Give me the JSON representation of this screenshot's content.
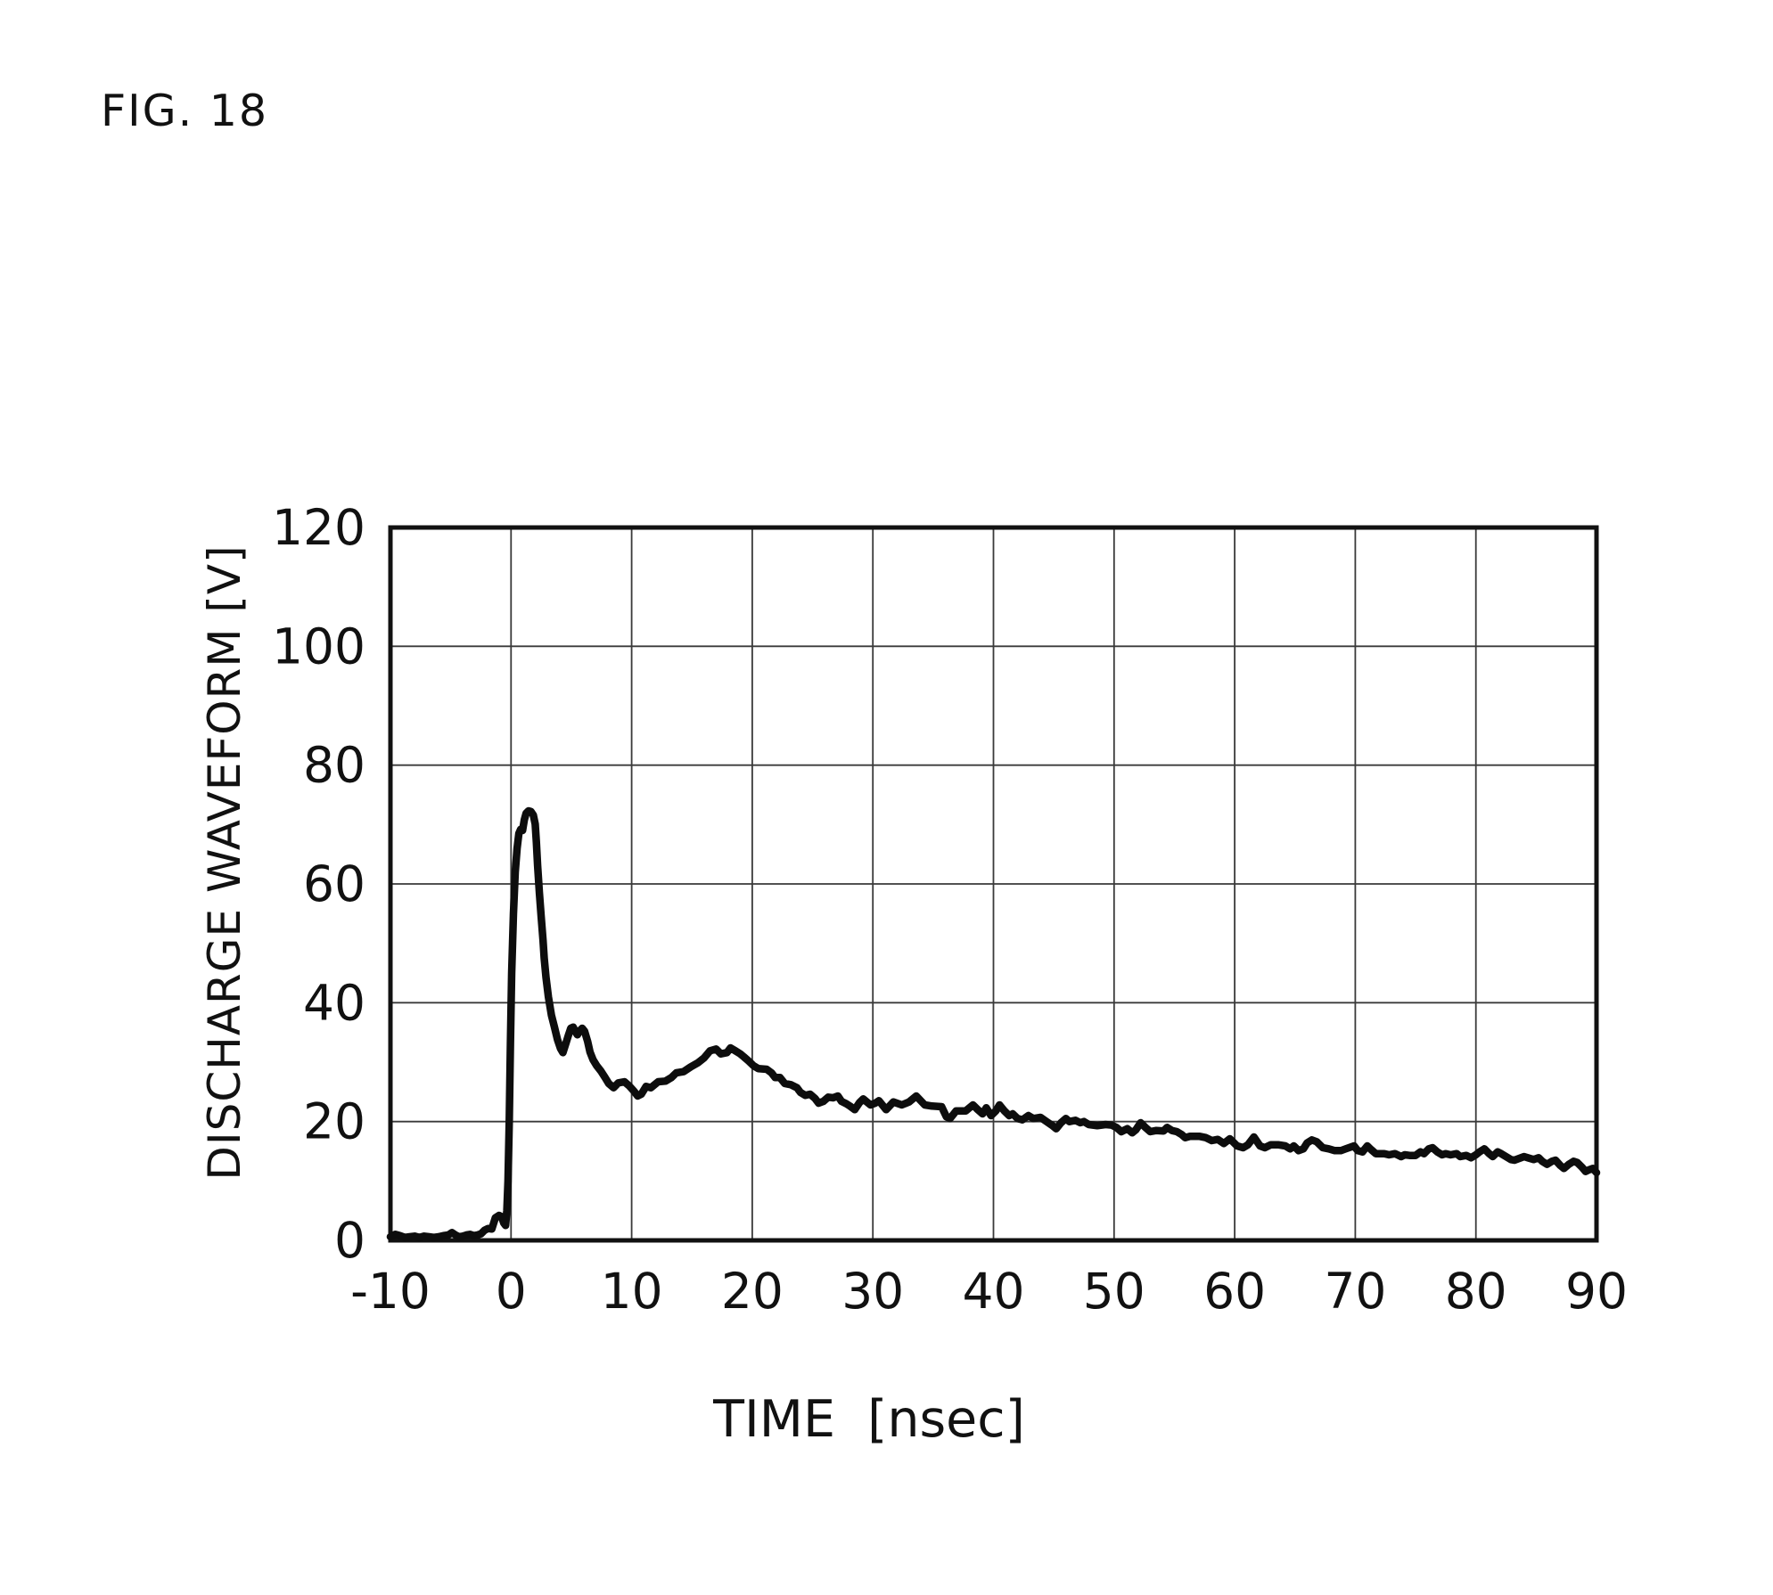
{
  "title": "FIG. 18",
  "colors": {
    "background": "#ffffff",
    "axis": "#111111",
    "grid": "#3a3a3a",
    "line": "#0d0d0d"
  },
  "chart_data": {
    "type": "line",
    "title": "FIG. 18",
    "xlabel": "TIME [nsec]",
    "ylabel": "DISCHARGE WAVEFORM [V]",
    "xlim": [
      -10,
      90
    ],
    "ylim": [
      0,
      120
    ],
    "xticks": [
      -10,
      0,
      10,
      20,
      30,
      40,
      50,
      60,
      70,
      80,
      90
    ],
    "yticks": [
      0,
      20,
      40,
      60,
      80,
      100,
      120
    ],
    "grid": true,
    "legend_position": "none",
    "series": [
      {
        "name": "discharge-waveform",
        "points": [
          [
            -10,
            0.6
          ],
          [
            -9.6,
            1.0
          ],
          [
            -9.2,
            0.8
          ],
          [
            -8.8,
            0.5
          ],
          [
            -8.4,
            0.6
          ],
          [
            -8.0,
            0.7
          ],
          [
            -7.6,
            0.5
          ],
          [
            -7.2,
            0.7
          ],
          [
            -6.8,
            0.6
          ],
          [
            -6.4,
            0.5
          ],
          [
            -6.0,
            0.6
          ],
          [
            -5.6,
            0.8
          ],
          [
            -5.2,
            0.9
          ],
          [
            -4.9,
            1.3
          ],
          [
            -4.6,
            0.9
          ],
          [
            -4.3,
            0.6
          ],
          [
            -4.0,
            0.7
          ],
          [
            -3.7,
            0.9
          ],
          [
            -3.4,
            1.0
          ],
          [
            -3.1,
            0.8
          ],
          [
            -2.8,
            0.9
          ],
          [
            -2.5,
            1.1
          ],
          [
            -2.2,
            1.7
          ],
          [
            -1.9,
            2.0
          ],
          [
            -1.6,
            1.9
          ],
          [
            -1.3,
            3.8
          ],
          [
            -1.0,
            4.2
          ],
          [
            -0.8,
            4.0
          ],
          [
            -0.6,
            2.9
          ],
          [
            -0.45,
            2.5
          ],
          [
            -0.35,
            5.0
          ],
          [
            -0.25,
            10.0
          ],
          [
            -0.15,
            20.0
          ],
          [
            -0.05,
            33.0
          ],
          [
            0.05,
            45.0
          ],
          [
            0.2,
            55.0
          ],
          [
            0.35,
            62.0
          ],
          [
            0.5,
            66.0
          ],
          [
            0.65,
            68.5
          ],
          [
            0.8,
            69.2
          ],
          [
            0.95,
            69.0
          ],
          [
            1.1,
            70.8
          ],
          [
            1.25,
            71.9
          ],
          [
            1.45,
            72.3
          ],
          [
            1.65,
            72.2
          ],
          [
            1.85,
            71.6
          ],
          [
            2.0,
            70.1
          ],
          [
            2.1,
            67.1
          ],
          [
            2.2,
            63.1
          ],
          [
            2.35,
            58.5
          ],
          [
            2.5,
            54.5
          ],
          [
            2.65,
            50.5
          ],
          [
            2.75,
            47.5
          ],
          [
            2.9,
            44.3
          ],
          [
            3.1,
            41.0
          ],
          [
            3.35,
            37.9
          ],
          [
            3.6,
            35.9
          ],
          [
            3.85,
            33.8
          ],
          [
            4.1,
            32.3
          ],
          [
            4.3,
            31.6
          ],
          [
            4.55,
            33.2
          ],
          [
            4.75,
            34.5
          ],
          [
            4.95,
            35.7
          ],
          [
            5.15,
            35.9
          ],
          [
            5.35,
            35.1
          ],
          [
            5.5,
            34.6
          ],
          [
            5.7,
            35.3
          ],
          [
            5.9,
            35.7
          ],
          [
            6.1,
            35.2
          ],
          [
            6.35,
            33.5
          ],
          [
            6.55,
            31.7
          ],
          [
            6.8,
            30.4
          ],
          [
            7.1,
            29.4
          ],
          [
            7.45,
            28.5
          ],
          [
            7.8,
            27.4
          ],
          [
            8.1,
            26.4
          ],
          [
            8.5,
            25.7
          ],
          [
            8.9,
            26.5
          ],
          [
            9.4,
            26.7
          ],
          [
            9.8,
            26.0
          ],
          [
            10.2,
            25.1
          ],
          [
            10.5,
            24.3
          ],
          [
            10.8,
            24.6
          ],
          [
            11.2,
            25.9
          ],
          [
            11.6,
            25.7
          ],
          [
            12.2,
            26.7
          ],
          [
            12.8,
            26.8
          ],
          [
            13.3,
            27.4
          ],
          [
            13.7,
            28.2
          ],
          [
            14.3,
            28.4
          ],
          [
            14.9,
            29.2
          ],
          [
            15.5,
            29.9
          ],
          [
            16.0,
            30.7
          ],
          [
            16.5,
            31.9
          ],
          [
            17.0,
            32.2
          ],
          [
            17.4,
            31.4
          ],
          [
            17.9,
            31.6
          ],
          [
            18.2,
            32.4
          ],
          [
            18.6,
            31.9
          ],
          [
            19.0,
            31.4
          ],
          [
            19.3,
            30.9
          ],
          [
            19.7,
            30.2
          ],
          [
            20.1,
            29.4
          ],
          [
            20.5,
            28.9
          ],
          [
            21.2,
            28.8
          ],
          [
            21.6,
            28.2
          ],
          [
            21.9,
            27.4
          ],
          [
            22.3,
            27.4
          ],
          [
            22.7,
            26.4
          ],
          [
            23.2,
            26.2
          ],
          [
            23.7,
            25.7
          ],
          [
            24.0,
            24.9
          ],
          [
            24.4,
            24.4
          ],
          [
            24.8,
            24.6
          ],
          [
            25.2,
            23.9
          ],
          [
            25.5,
            23.1
          ],
          [
            25.9,
            23.4
          ],
          [
            26.3,
            24.1
          ],
          [
            26.7,
            24.0
          ],
          [
            27.1,
            24.3
          ],
          [
            27.4,
            23.4
          ],
          [
            27.8,
            23.0
          ],
          [
            28.1,
            22.6
          ],
          [
            28.5,
            22.0
          ],
          [
            28.9,
            23.2
          ],
          [
            29.2,
            23.8
          ],
          [
            29.8,
            22.8
          ],
          [
            30.2,
            23.1
          ],
          [
            30.5,
            23.5
          ],
          [
            31.1,
            22.0
          ],
          [
            31.7,
            23.3
          ],
          [
            32.4,
            22.8
          ],
          [
            33.0,
            23.3
          ],
          [
            33.6,
            24.3
          ],
          [
            34.3,
            22.8
          ],
          [
            34.9,
            22.6
          ],
          [
            35.7,
            22.5
          ],
          [
            36.1,
            20.8
          ],
          [
            36.4,
            20.5
          ],
          [
            36.9,
            21.8
          ],
          [
            37.7,
            21.8
          ],
          [
            38.3,
            22.8
          ],
          [
            38.7,
            22.0
          ],
          [
            39.1,
            21.3
          ],
          [
            39.4,
            22.3
          ],
          [
            39.8,
            21.0
          ],
          [
            40.2,
            21.8
          ],
          [
            40.5,
            22.8
          ],
          [
            40.9,
            21.8
          ],
          [
            41.3,
            21.0
          ],
          [
            41.6,
            21.3
          ],
          [
            42.0,
            20.5
          ],
          [
            42.4,
            20.3
          ],
          [
            42.9,
            21.0
          ],
          [
            43.3,
            20.5
          ],
          [
            43.9,
            20.7
          ],
          [
            44.4,
            20.0
          ],
          [
            44.9,
            19.3
          ],
          [
            45.2,
            18.8
          ],
          [
            45.6,
            19.8
          ],
          [
            46.0,
            20.5
          ],
          [
            46.3,
            20.0
          ],
          [
            46.8,
            20.2
          ],
          [
            47.2,
            19.8
          ],
          [
            47.5,
            20.0
          ],
          [
            47.9,
            19.5
          ],
          [
            48.6,
            19.3
          ],
          [
            49.3,
            19.5
          ],
          [
            49.8,
            19.4
          ],
          [
            50.2,
            19.0
          ],
          [
            50.6,
            18.3
          ],
          [
            51.1,
            18.8
          ],
          [
            51.5,
            18.1
          ],
          [
            51.8,
            18.6
          ],
          [
            52.2,
            19.8
          ],
          [
            52.6,
            19.0
          ],
          [
            53.0,
            18.3
          ],
          [
            53.5,
            18.5
          ],
          [
            54.1,
            18.4
          ],
          [
            54.4,
            19.0
          ],
          [
            54.8,
            18.5
          ],
          [
            55.2,
            18.3
          ],
          [
            55.6,
            17.8
          ],
          [
            55.9,
            17.3
          ],
          [
            56.3,
            17.5
          ],
          [
            57.1,
            17.5
          ],
          [
            57.6,
            17.3
          ],
          [
            58.1,
            16.8
          ],
          [
            58.6,
            17.0
          ],
          [
            59.1,
            16.3
          ],
          [
            59.6,
            17.1
          ],
          [
            60.2,
            15.9
          ],
          [
            60.7,
            15.6
          ],
          [
            61.1,
            16.1
          ],
          [
            61.6,
            17.4
          ],
          [
            62.1,
            15.9
          ],
          [
            62.5,
            15.6
          ],
          [
            63.0,
            16.1
          ],
          [
            63.6,
            16.1
          ],
          [
            64.2,
            15.9
          ],
          [
            64.6,
            15.4
          ],
          [
            64.9,
            15.9
          ],
          [
            65.3,
            15.1
          ],
          [
            65.7,
            15.4
          ],
          [
            66.0,
            16.4
          ],
          [
            66.4,
            16.9
          ],
          [
            66.8,
            16.6
          ],
          [
            67.3,
            15.6
          ],
          [
            67.8,
            15.4
          ],
          [
            68.3,
            15.1
          ],
          [
            68.8,
            15.1
          ],
          [
            69.2,
            15.4
          ],
          [
            69.9,
            15.9
          ],
          [
            70.2,
            15.1
          ],
          [
            70.6,
            14.9
          ],
          [
            71.0,
            15.9
          ],
          [
            71.3,
            15.3
          ],
          [
            71.7,
            14.6
          ],
          [
            72.4,
            14.6
          ],
          [
            72.8,
            14.4
          ],
          [
            73.3,
            14.6
          ],
          [
            73.8,
            14.1
          ],
          [
            74.1,
            14.4
          ],
          [
            74.5,
            14.3
          ],
          [
            75.0,
            14.3
          ],
          [
            75.4,
            14.9
          ],
          [
            75.7,
            14.6
          ],
          [
            76.1,
            15.4
          ],
          [
            76.4,
            15.6
          ],
          [
            76.8,
            14.9
          ],
          [
            77.2,
            14.4
          ],
          [
            77.5,
            14.6
          ],
          [
            77.9,
            14.4
          ],
          [
            78.4,
            14.6
          ],
          [
            78.7,
            14.1
          ],
          [
            79.2,
            14.3
          ],
          [
            79.6,
            13.9
          ],
          [
            80.0,
            14.4
          ],
          [
            80.3,
            14.9
          ],
          [
            80.7,
            15.4
          ],
          [
            81.1,
            14.6
          ],
          [
            81.4,
            14.1
          ],
          [
            81.8,
            14.9
          ],
          [
            82.1,
            14.6
          ],
          [
            82.5,
            14.1
          ],
          [
            82.9,
            13.6
          ],
          [
            83.2,
            13.5
          ],
          [
            83.6,
            13.8
          ],
          [
            84.0,
            14.1
          ],
          [
            84.3,
            13.9
          ],
          [
            84.8,
            13.6
          ],
          [
            85.2,
            13.9
          ],
          [
            85.5,
            13.3
          ],
          [
            85.9,
            12.8
          ],
          [
            86.3,
            13.3
          ],
          [
            86.6,
            13.5
          ],
          [
            87.0,
            12.6
          ],
          [
            87.3,
            12.1
          ],
          [
            87.7,
            12.8
          ],
          [
            88.1,
            13.3
          ],
          [
            88.4,
            13.1
          ],
          [
            88.8,
            12.3
          ],
          [
            89.1,
            11.6
          ],
          [
            89.4,
            11.9
          ],
          [
            89.7,
            12.1
          ],
          [
            90.0,
            11.4
          ]
        ]
      }
    ]
  }
}
